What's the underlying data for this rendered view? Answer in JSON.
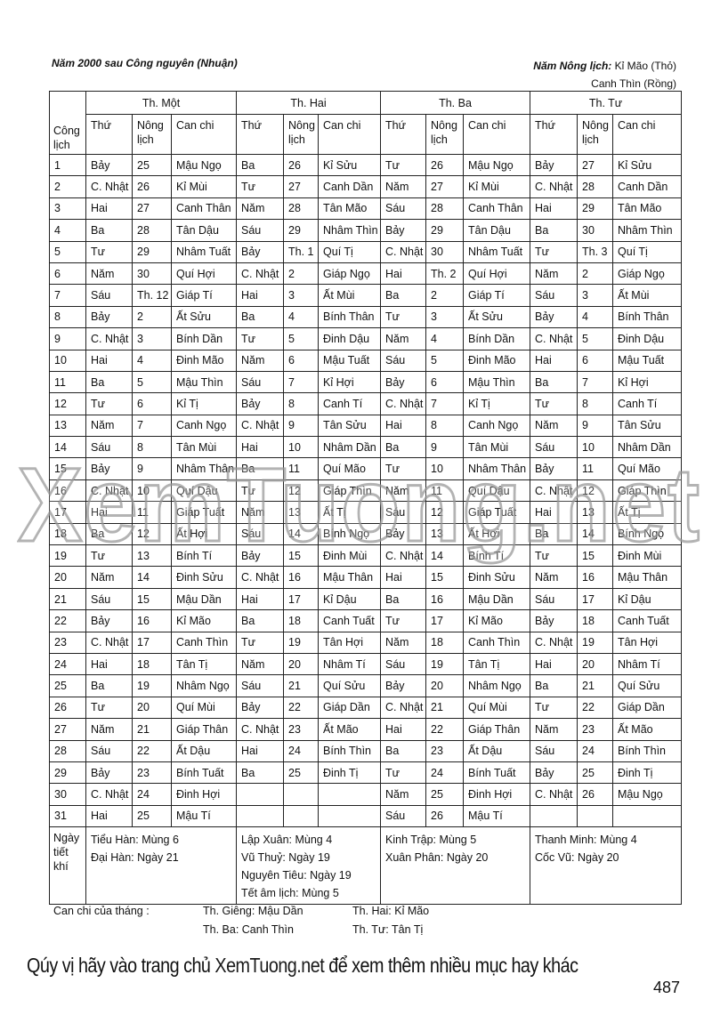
{
  "header": {
    "left": "Năm 2000 sau Công nguyên  (Nhuận)",
    "right_label": "Năm Nông lịch:",
    "right_year1": "Kỉ Mão (Thỏ)",
    "right_year2": "Canh Thìn (Rồng)"
  },
  "table": {
    "months": [
      "Th. Một",
      "Th. Hai",
      "Th. Ba",
      "Th. Tư"
    ],
    "col_cong_lich": "Công lịch",
    "sub_headers": [
      "Thứ",
      "Nông lịch",
      "Can chi"
    ],
    "rows": [
      [
        "1",
        "Bảy",
        "25",
        "Mậu Ngọ",
        "Ba",
        "26",
        "Kỉ Sửu",
        "Tư",
        "26",
        "Mậu Ngọ",
        "Bảy",
        "27",
        "Kỉ Sửu"
      ],
      [
        "2",
        "C. Nhật",
        "26",
        "Kỉ Mùi",
        "Tư",
        "27",
        "Canh Dần",
        "Năm",
        "27",
        "Kỉ Mùi",
        "C. Nhật",
        "28",
        "Canh Dần"
      ],
      [
        "3",
        "Hai",
        "27",
        "Canh Thân",
        "Năm",
        "28",
        "Tân Mão",
        "Sáu",
        "28",
        "Canh Thân",
        "Hai",
        "29",
        "Tân Mão"
      ],
      [
        "4",
        "Ba",
        "28",
        "Tân Dậu",
        "Sáu",
        "29",
        "Nhâm Thìn",
        "Bảy",
        "29",
        "Tân Dậu",
        "Ba",
        "30",
        "Nhâm Thìn"
      ],
      [
        "5",
        "Tư",
        "29",
        "Nhâm Tuất",
        "Bảy",
        "Th. 1",
        "Quí Tị",
        "C. Nhật",
        "30",
        "Nhâm Tuất",
        "Tư",
        "Th. 3",
        "Quí Tị"
      ],
      [
        "6",
        "Năm",
        "30",
        "Quí  Hợi",
        "C. Nhật",
        "2",
        "Giáp Ngọ",
        "Hai",
        "Th. 2",
        "Quí  Hợi",
        "Năm",
        "2",
        "Giáp Ngọ"
      ],
      [
        "7",
        "Sáu",
        "Th. 12",
        "Giáp Tí",
        "Hai",
        "3",
        "Ất Mùi",
        "Ba",
        "2",
        "Giáp Tí",
        "Sáu",
        "3",
        "Ất Mùi"
      ],
      [
        "8",
        "Bảy",
        "2",
        "Ất Sửu",
        "Ba",
        "4",
        "Bính Thân",
        "Tư",
        "3",
        "Ất Sửu",
        "Bảy",
        "4",
        "Bính Thân"
      ],
      [
        "9",
        "C. Nhật",
        "3",
        "Bính Dần",
        "Tư",
        "5",
        "Đinh Dậu",
        "Năm",
        "4",
        "Bính Dần",
        "C. Nhật",
        "5",
        "Đinh Dậu"
      ],
      [
        "10",
        "Hai",
        "4",
        "Đinh Mão",
        "Năm",
        "6",
        "Mậu  Tuất",
        "Sáu",
        "5",
        "Đinh Mão",
        "Hai",
        "6",
        "Mậu  Tuất"
      ],
      [
        "11",
        "Ba",
        "5",
        "Mậu Thìn",
        "Sáu",
        "7",
        "Kỉ Hợi",
        "Bảy",
        "6",
        "Mậu Thìn",
        "Ba",
        "7",
        "Kỉ Hợi"
      ],
      [
        "12",
        "Tư",
        "6",
        "Kỉ Tị",
        "Bảy",
        "8",
        "Canh Tí",
        "C. Nhật",
        "7",
        "Kỉ Tị",
        "Tư",
        "8",
        "Canh Tí"
      ],
      [
        "13",
        "Năm",
        "7",
        "Canh Ngọ",
        "C. Nhật",
        "9",
        "Tân Sửu",
        "Hai",
        "8",
        "Canh Ngọ",
        "Năm",
        "9",
        "Tân Sửu"
      ],
      [
        "14",
        "Sáu",
        "8",
        "Tân Mùi",
        "Hai",
        "10",
        "Nhâm Dần",
        "Ba",
        "9",
        "Tân Mùi",
        "Sáu",
        "10",
        "Nhâm Dần"
      ],
      [
        "15",
        "Bảy",
        "9",
        "Nhâm Thân",
        "Ba",
        "11",
        "Quí Mão",
        "Tư",
        "10",
        "Nhâm Thân",
        "Bảy",
        "11",
        "Quí Mão"
      ],
      [
        "16",
        "C. Nhật",
        "10",
        "Quí Dậu",
        "Tư",
        "12",
        "Giáp Thìn",
        "Năm",
        "11",
        "Quí Dậu",
        "C. Nhật",
        "12",
        "Giáp Thìn"
      ],
      [
        "17",
        "Hai",
        "11",
        "Giáp Tuất",
        "Năm",
        "13",
        "Ất Tị",
        "Sáu",
        "12",
        "Giáp Tuất",
        "Hai",
        "13",
        "Ất Tị"
      ],
      [
        "18",
        "Ba",
        "12",
        "Ất Hợi",
        "Sáu",
        "14",
        "Bính Ngọ",
        "Bảy",
        "13",
        "Ất Hợi",
        "Ba",
        "14",
        "Bính Ngọ"
      ],
      [
        "19",
        "Tư",
        "13",
        "Bính Tí",
        "Bảy",
        "15",
        "Đinh Mùi",
        "C. Nhật",
        "14",
        "Bính Tí",
        "Tư",
        "15",
        "Đinh Mùi"
      ],
      [
        "20",
        "Năm",
        "14",
        "Đinh Sửu",
        "C. Nhật",
        "16",
        "Mậu Thân",
        "Hai",
        "15",
        "Đinh Sửu",
        "Năm",
        "16",
        "Mậu Thân"
      ],
      [
        "21",
        "Sáu",
        "15",
        "Mậu Dần",
        "Hai",
        "17",
        "Kỉ Dậu",
        "Ba",
        "16",
        "Mậu Dần",
        "Sáu",
        "17",
        "Kỉ Dậu"
      ],
      [
        "22",
        "Bảy",
        "16",
        "Kỉ Mão",
        "Ba",
        "18",
        "Canh Tuất",
        "Tư",
        "17",
        "Kỉ Mão",
        "Bảy",
        "18",
        "Canh Tuất"
      ],
      [
        "23",
        "C. Nhật",
        "17",
        "Canh Thìn",
        "Tư",
        "19",
        "Tân Hợi",
        "Năm",
        "18",
        "Canh Thìn",
        "C. Nhật",
        "19",
        "Tân Hợi"
      ],
      [
        "24",
        "Hai",
        "18",
        "Tân Tị",
        "Năm",
        "20",
        "Nhâm Tí",
        "Sáu",
        "19",
        "Tân Tị",
        "Hai",
        "20",
        "Nhâm Tí"
      ],
      [
        "25",
        "Ba",
        "19",
        "Nhâm Ngọ",
        "Sáu",
        "21",
        "Quí Sửu",
        "Bảy",
        "20",
        "Nhâm Ngọ",
        "Ba",
        "21",
        "Quí Sửu"
      ],
      [
        "26",
        "Tư",
        "20",
        "Quí Mùi",
        "Bảy",
        "22",
        "Giáp Dần",
        "C. Nhật",
        "21",
        "Quí Mùi",
        "Tư",
        "22",
        "Giáp Dần"
      ],
      [
        "27",
        "Năm",
        "21",
        "Giáp Thân",
        "C. Nhật",
        "23",
        "Ất Mão",
        "Hai",
        "22",
        "Giáp Thân",
        "Năm",
        "23",
        "Ất Mão"
      ],
      [
        "28",
        "Sáu",
        "22",
        "Ất Dậu",
        "Hai",
        "24",
        "Bính Thìn",
        "Ba",
        "23",
        "Ất Dậu",
        "Sáu",
        "24",
        "Bính Thìn"
      ],
      [
        "29",
        "Bảy",
        "23",
        "Bính Tuất",
        "Ba",
        "25",
        "Đinh Tị",
        "Tư",
        "24",
        "Bính Tuất",
        "Bảy",
        "25",
        "Đinh Tị"
      ],
      [
        "30",
        "C. Nhật",
        "24",
        "Đinh Hợi",
        "",
        "",
        "",
        "Năm",
        "25",
        "Đinh Hợi",
        "C. Nhật",
        "26",
        "Mậu Ngọ"
      ],
      [
        "31",
        "Hai",
        "25",
        "Mậu Tí",
        "",
        "",
        "",
        "Sáu",
        "26",
        "Mậu Tí",
        "",
        "",
        ""
      ]
    ],
    "tiet_khi_label": "Ngày tiết khí",
    "tiet_khi": [
      [
        "Tiểu Hàn: Mùng 6",
        "Đại Hàn: Ngày 21"
      ],
      [
        "Lập Xuân: Mùng 4",
        "Vũ Thuỷ: Ngày 19",
        "Nguyên Tiêu: Ngày 19",
        "Tết âm lịch: Mùng 5"
      ],
      [
        "Kinh Trập: Mùng 5",
        "Xuân Phân: Ngày 20"
      ],
      [
        "Thanh Minh: Mùng 4",
        "Cốc Vũ: Ngày 20"
      ]
    ]
  },
  "can_chi_thang": {
    "label": "Can chi của tháng :",
    "items": [
      "Th. Giêng: Mậu Dần",
      "Th. Hai: Kỉ Mão",
      "Th. Ba: Canh Thìn",
      "Th. Tư: Tân Tị"
    ]
  },
  "footer": {
    "text_before": "Qúy vị hãy vào trang chủ ",
    "brand": "XemTuong.net",
    "text_after": " để xem thêm nhiều mục hay khác",
    "page_number": "487"
  },
  "watermark": "XemTuong.net"
}
